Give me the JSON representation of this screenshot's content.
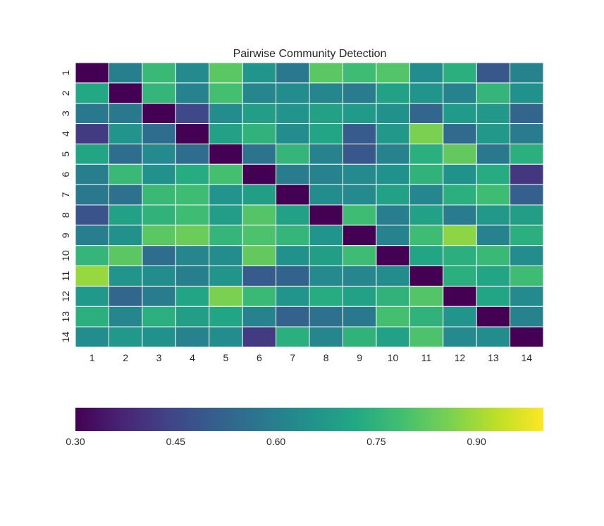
{
  "chart_data": {
    "type": "heatmap",
    "title": "Pairwise Community Detection",
    "xlabel": "",
    "ylabel": "",
    "x_labels": [
      "1",
      "2",
      "3",
      "4",
      "5",
      "6",
      "7",
      "8",
      "9",
      "10",
      "11",
      "12",
      "13",
      "14"
    ],
    "y_labels": [
      "1",
      "2",
      "3",
      "4",
      "5",
      "6",
      "7",
      "8",
      "9",
      "10",
      "11",
      "12",
      "13",
      "14"
    ],
    "colormap": "viridis",
    "vmin": 0.3,
    "vmax": 1.0,
    "colorbar": {
      "orientation": "horizontal",
      "placement": "bottom",
      "ticks": [
        0.3,
        0.45,
        0.6,
        0.75,
        0.9
      ],
      "tick_labels": [
        "0.30",
        "0.45",
        "0.60",
        "0.75",
        "0.90"
      ]
    },
    "grid_line_color": "#ffffff",
    "values": [
      [
        0.3,
        0.6,
        0.77,
        0.63,
        0.82,
        0.66,
        0.58,
        0.82,
        0.78,
        0.81,
        0.64,
        0.74,
        0.49,
        0.61
      ],
      [
        0.72,
        0.3,
        0.76,
        0.61,
        0.79,
        0.62,
        0.64,
        0.62,
        0.59,
        0.7,
        0.66,
        0.61,
        0.76,
        0.65
      ],
      [
        0.58,
        0.58,
        0.3,
        0.45,
        0.64,
        0.69,
        0.66,
        0.7,
        0.68,
        0.65,
        0.53,
        0.68,
        0.67,
        0.53
      ],
      [
        0.42,
        0.66,
        0.55,
        0.3,
        0.7,
        0.75,
        0.64,
        0.71,
        0.5,
        0.67,
        0.86,
        0.54,
        0.67,
        0.59
      ],
      [
        0.71,
        0.55,
        0.63,
        0.55,
        0.3,
        0.57,
        0.76,
        0.61,
        0.49,
        0.61,
        0.74,
        0.83,
        0.58,
        0.74
      ],
      [
        0.6,
        0.77,
        0.65,
        0.73,
        0.79,
        0.3,
        0.59,
        0.61,
        0.63,
        0.65,
        0.75,
        0.65,
        0.73,
        0.41
      ],
      [
        0.58,
        0.56,
        0.77,
        0.78,
        0.66,
        0.69,
        0.3,
        0.64,
        0.63,
        0.7,
        0.62,
        0.74,
        0.78,
        0.51
      ],
      [
        0.48,
        0.7,
        0.75,
        0.78,
        0.69,
        0.81,
        0.7,
        0.3,
        0.78,
        0.6,
        0.7,
        0.59,
        0.67,
        0.69
      ],
      [
        0.6,
        0.65,
        0.82,
        0.84,
        0.76,
        0.8,
        0.76,
        0.66,
        0.3,
        0.61,
        0.78,
        0.88,
        0.61,
        0.74
      ],
      [
        0.76,
        0.82,
        0.55,
        0.62,
        0.64,
        0.83,
        0.65,
        0.69,
        0.78,
        0.3,
        0.71,
        0.74,
        0.77,
        0.64
      ],
      [
        0.89,
        0.66,
        0.64,
        0.6,
        0.66,
        0.5,
        0.52,
        0.63,
        0.62,
        0.64,
        0.3,
        0.74,
        0.71,
        0.78
      ],
      [
        0.67,
        0.53,
        0.59,
        0.71,
        0.86,
        0.77,
        0.66,
        0.73,
        0.7,
        0.75,
        0.81,
        0.3,
        0.71,
        0.63
      ],
      [
        0.74,
        0.62,
        0.74,
        0.69,
        0.71,
        0.61,
        0.52,
        0.56,
        0.58,
        0.79,
        0.75,
        0.66,
        0.3,
        0.61
      ],
      [
        0.64,
        0.67,
        0.65,
        0.61,
        0.64,
        0.42,
        0.74,
        0.62,
        0.75,
        0.7,
        0.8,
        0.63,
        0.64,
        0.3
      ]
    ]
  }
}
